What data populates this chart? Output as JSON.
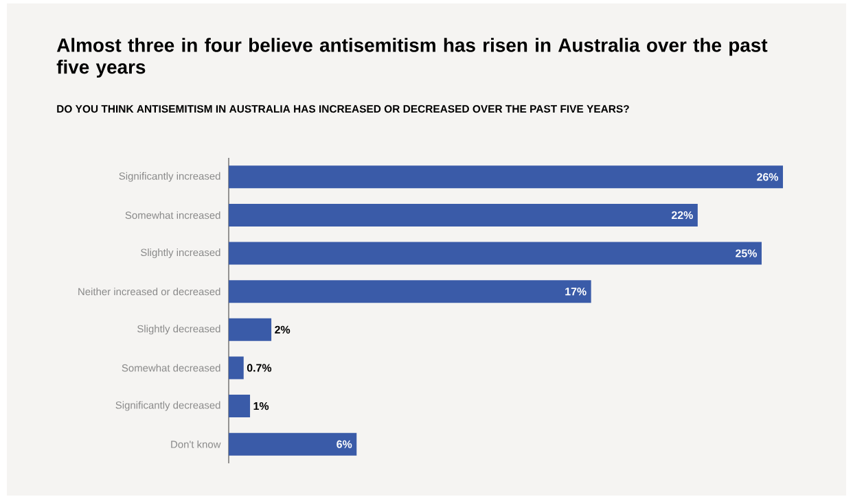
{
  "chart_data": {
    "type": "bar",
    "orientation": "horizontal",
    "title": "Almost three in four believe antisemitism has risen in Australia over the past five years",
    "subtitle": "DO YOU THINK ANTISEMITISM IN AUSTRALIA HAS INCREASED OR DECREASED OVER THE PAST FIVE YEARS?",
    "categories": [
      "Significantly increased",
      "Somewhat increased",
      "Slightly increased",
      "Neither increased or decreased",
      "Slightly decreased",
      "Somewhat decreased",
      "Significantly decreased",
      "Don't know"
    ],
    "values": [
      26,
      22,
      25,
      17,
      2,
      0.7,
      1,
      6
    ],
    "value_labels": [
      "26%",
      "22%",
      "25%",
      "17%",
      "2%",
      "0.7%",
      "1%",
      "6%"
    ],
    "color": "#3a5ba8",
    "grid": false
  }
}
